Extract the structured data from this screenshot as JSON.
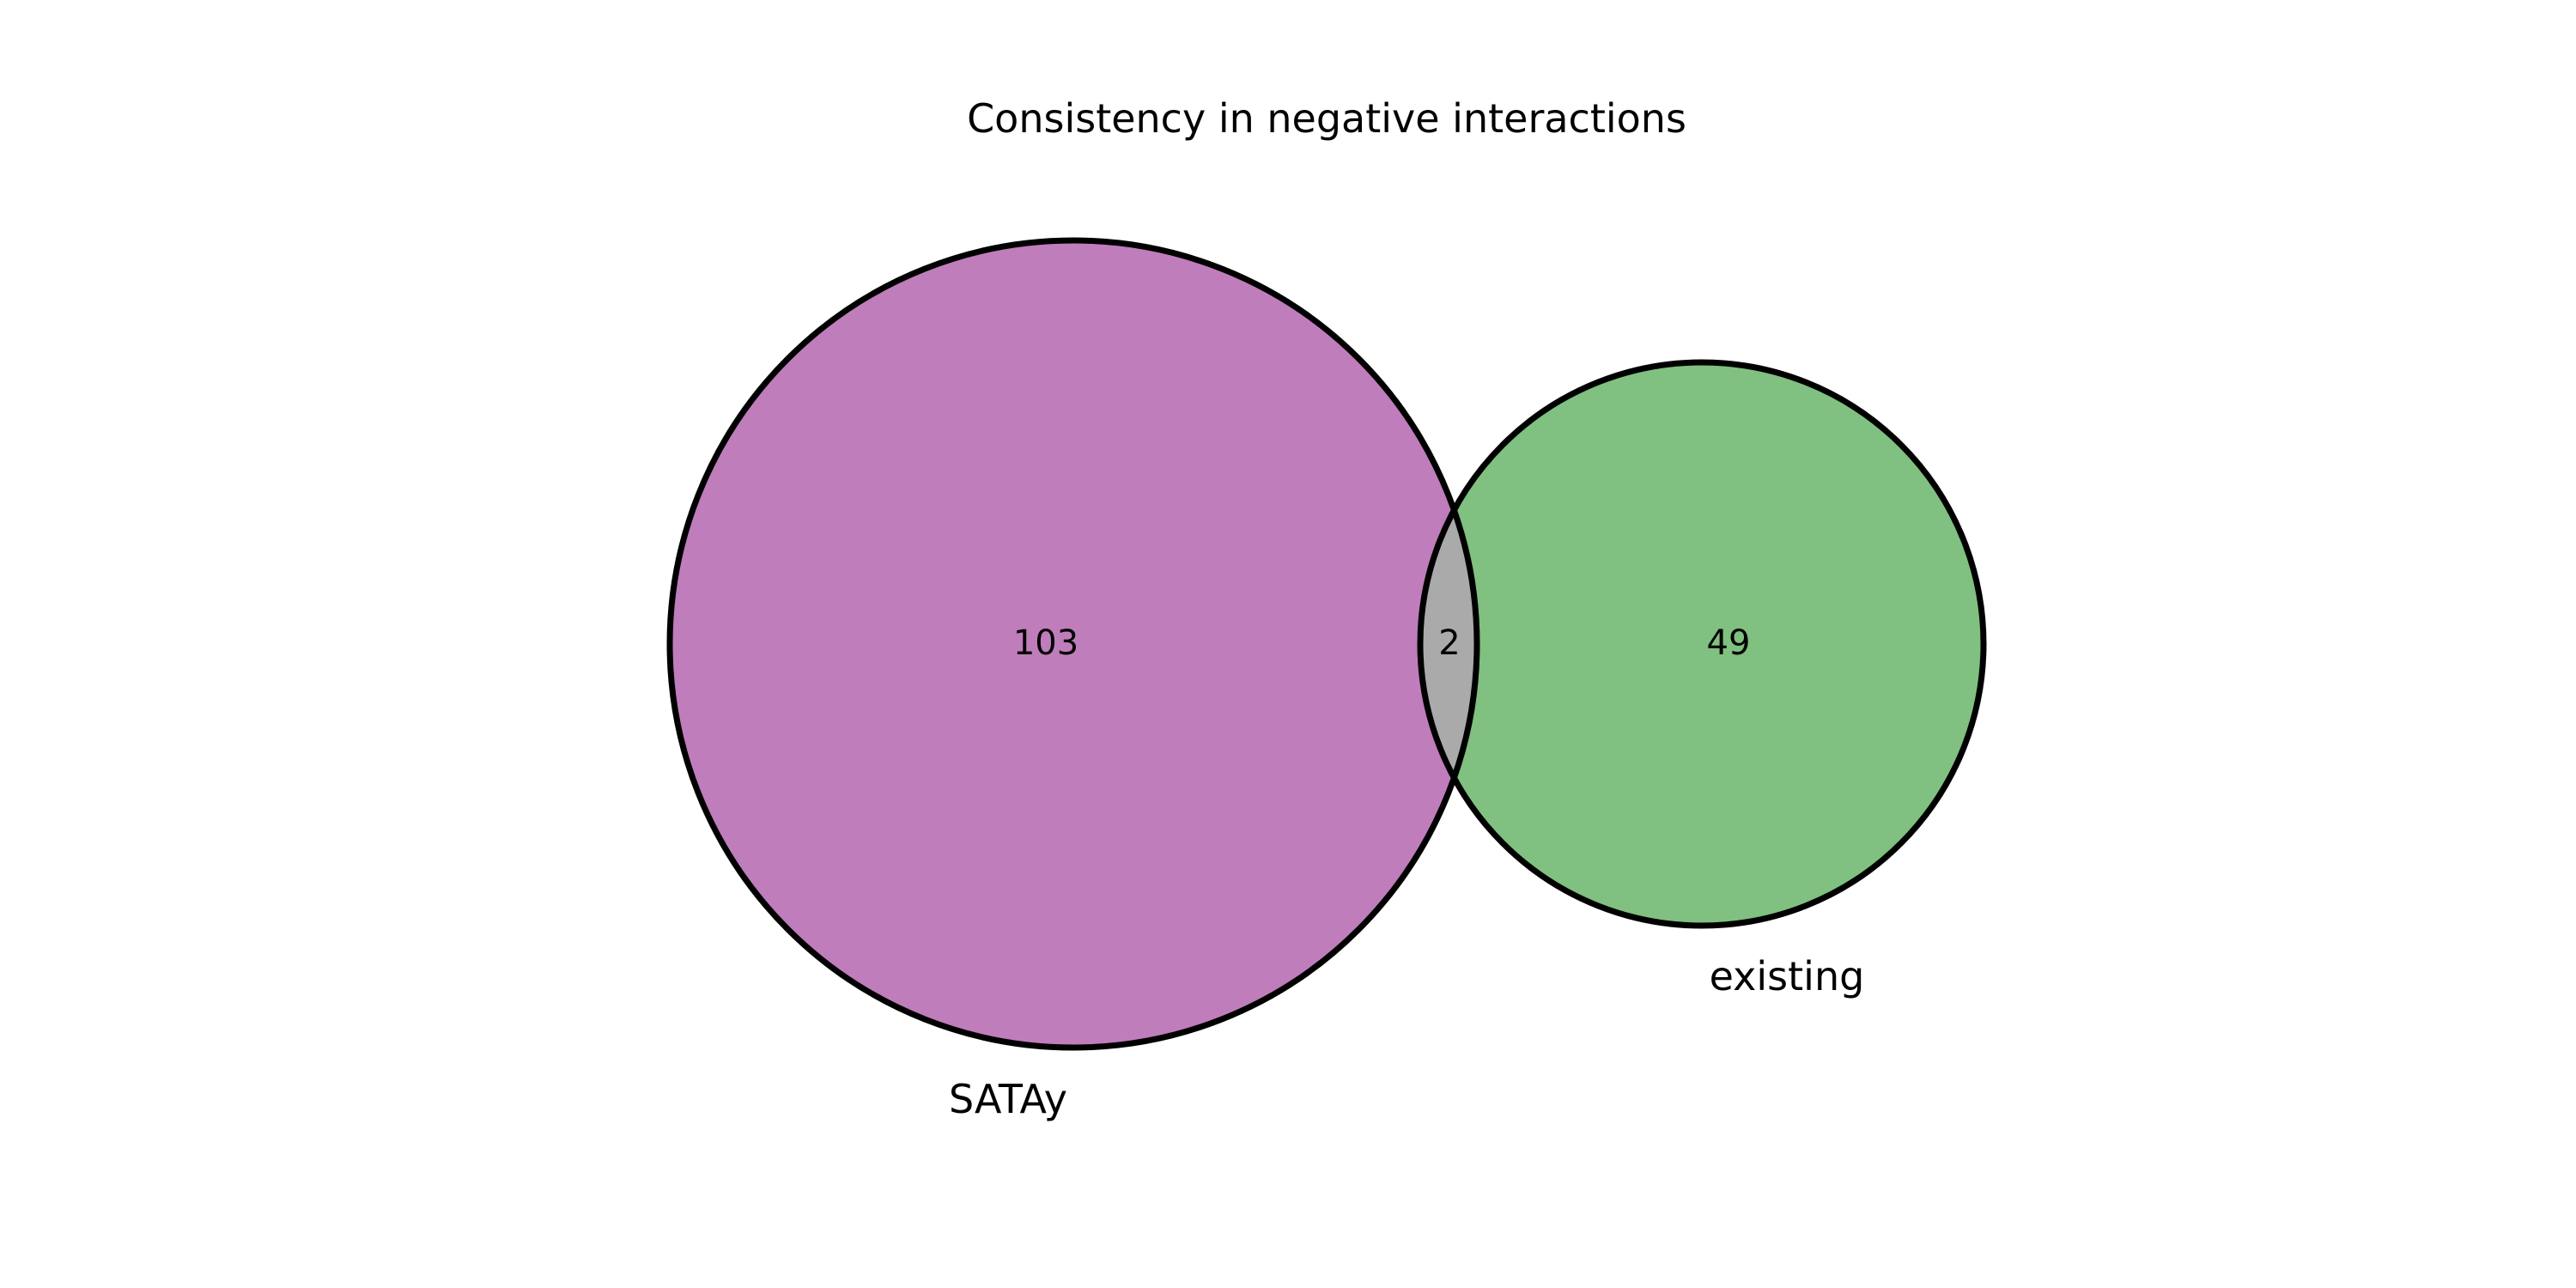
{
  "title": "Consistency in negative interactions",
  "chart_data": {
    "type": "venn",
    "sets": [
      {
        "name": "SATAy",
        "only_count": "103",
        "color": "#bf7dbb",
        "size": 105
      },
      {
        "name": "existing",
        "only_count": "49",
        "color": "#80c080",
        "size": 51
      }
    ],
    "intersection": {
      "count": "2",
      "color": "#aaaaaa",
      "size": 2
    },
    "outline_color": "#000000"
  }
}
